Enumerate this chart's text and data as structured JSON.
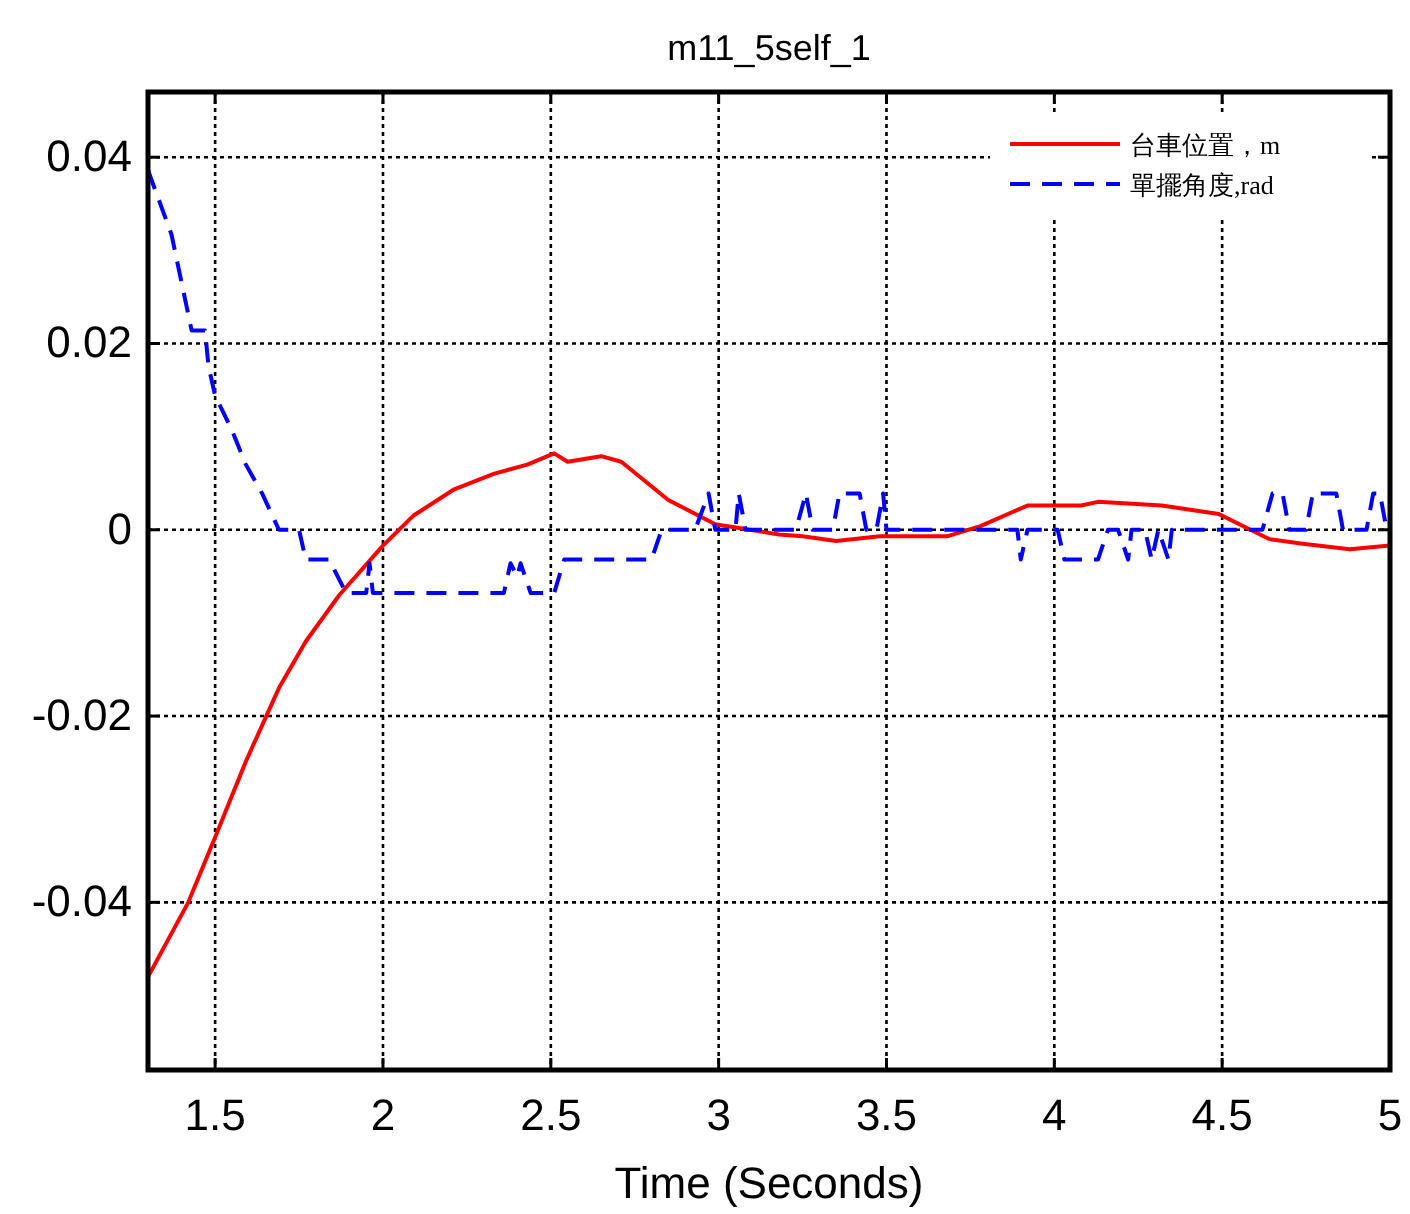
{
  "chart_data": {
    "type": "line",
    "title": "m11_5self_1",
    "xlabel": "Time (Seconds)",
    "xlim": [
      1.3,
      5
    ],
    "ylim": [
      -0.058,
      0.047
    ],
    "xticks": [
      1.5,
      2,
      2.5,
      3,
      3.5,
      4,
      4.5,
      5
    ],
    "yticks": [
      -0.04,
      -0.02,
      0,
      0.02,
      0.04
    ],
    "grid": true,
    "legend": "top right",
    "series": [
      {
        "name": "台車位置，m",
        "color": "#ff0000",
        "line_style": "solid",
        "x": [
          1.3,
          1.42,
          1.5,
          1.59,
          1.69,
          1.77,
          1.87,
          2.0,
          2.09,
          2.21,
          2.33,
          2.43,
          2.51,
          2.55,
          2.65,
          2.71,
          2.85,
          2.99,
          3.18,
          3.25,
          3.35,
          3.48,
          3.68,
          3.78,
          3.92,
          4.08,
          4.13,
          4.32,
          4.49,
          4.64,
          4.74,
          4.88,
          5.0
        ],
        "values": [
          -0.048,
          -0.04,
          -0.033,
          -0.025,
          -0.017,
          -0.012,
          -0.007,
          -0.0017,
          0.0015,
          0.0043,
          0.006,
          0.007,
          0.0082,
          0.0073,
          0.0079,
          0.0073,
          0.0032,
          0.0006,
          -0.0005,
          -0.0007,
          -0.0012,
          -0.0007,
          -0.0007,
          0.0004,
          0.0026,
          0.0026,
          0.003,
          0.0026,
          0.0017,
          -0.001,
          -0.0015,
          -0.0021,
          -0.0017
        ]
      },
      {
        "name": "單擺角度,rad",
        "color": "#0000ff",
        "line_style": "dashed",
        "x": [
          1.3,
          1.37,
          1.43,
          1.47,
          1.48,
          1.5,
          1.55,
          1.59,
          1.64,
          1.69,
          1.75,
          1.77,
          1.84,
          1.89,
          1.95,
          1.96,
          1.97,
          2.36,
          2.38,
          2.4,
          2.41,
          2.44,
          2.51,
          2.54,
          2.8,
          2.83,
          2.93,
          2.97,
          2.99,
          3.05,
          3.06,
          3.08,
          3.23,
          3.26,
          3.28,
          3.34,
          3.36,
          3.42,
          3.44,
          3.47,
          3.49,
          3.5,
          3.89,
          3.9,
          3.92,
          4.01,
          4.03,
          4.07,
          4.13,
          4.16,
          4.19,
          4.22,
          4.23,
          4.27,
          4.29,
          4.31,
          4.34,
          4.35,
          4.62,
          4.65,
          4.68,
          4.7,
          4.75,
          4.77,
          4.84,
          4.86,
          4.93,
          4.95,
          4.97,
          4.99,
          5.0
        ],
        "values": [
          0.0386,
          0.0317,
          0.0214,
          0.0214,
          0.0176,
          0.0144,
          0.0107,
          0.0071,
          0.0039,
          0.0,
          0.0,
          -0.0032,
          -0.0032,
          -0.0068,
          -0.0068,
          -0.0036,
          -0.0068,
          -0.0068,
          -0.0036,
          -0.005,
          -0.0036,
          -0.0068,
          -0.0068,
          -0.0032,
          -0.0032,
          0,
          0,
          0.0039,
          0,
          0,
          0.0039,
          0,
          0,
          0.0039,
          0,
          0,
          0.0039,
          0.0039,
          0,
          0,
          0.0039,
          0,
          0,
          -0.0032,
          0,
          0,
          -0.0032,
          -0.0032,
          -0.0032,
          0,
          0,
          -0.0032,
          0,
          0,
          -0.0032,
          0,
          -0.0032,
          0,
          0,
          0.0039,
          0.0039,
          0,
          0,
          0.0039,
          0.0039,
          0,
          0,
          0.0039,
          0.0039,
          0,
          0
        ]
      }
    ]
  }
}
